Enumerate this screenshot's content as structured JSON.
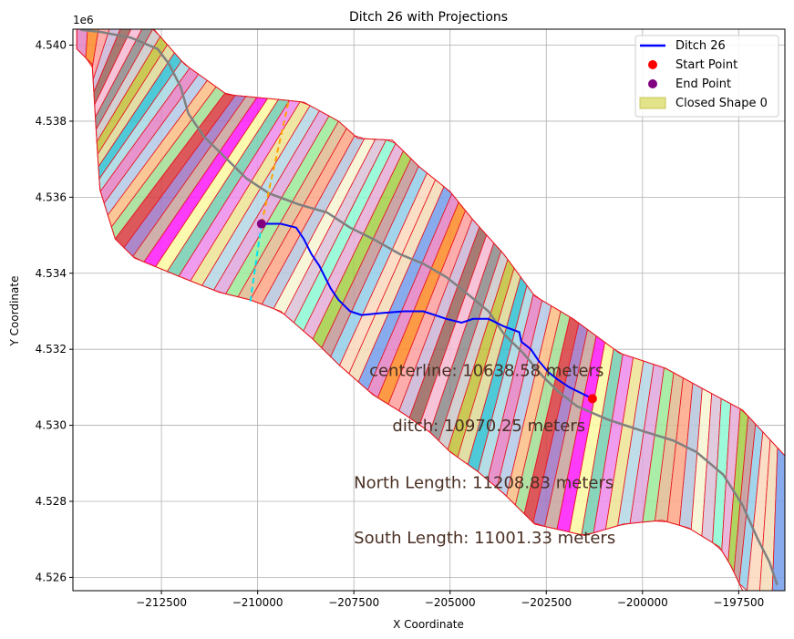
{
  "chart_data": {
    "type": "line",
    "title": "Ditch 26 with Projections",
    "xlabel": "X Coordinate",
    "ylabel": "Y Coordinate",
    "y_offset_label": "1e6",
    "xlim": [
      -214800,
      -196300
    ],
    "ylim": [
      4525650,
      4540420
    ],
    "grid": true,
    "legend_position": "top-right",
    "x_ticks": [
      {
        "value": -212500,
        "label": "−212500"
      },
      {
        "value": -210000,
        "label": "−210000"
      },
      {
        "value": -207500,
        "label": "−207500"
      },
      {
        "value": -205000,
        "label": "−205000"
      },
      {
        "value": -202500,
        "label": "−202500"
      },
      {
        "value": -200000,
        "label": "−200000"
      },
      {
        "value": -197500,
        "label": "−197500"
      }
    ],
    "y_ticks": [
      {
        "value": 4526000,
        "label": "4.526"
      },
      {
        "value": 4528000,
        "label": "4.528"
      },
      {
        "value": 4530000,
        "label": "4.530"
      },
      {
        "value": 4532000,
        "label": "4.532"
      },
      {
        "value": 4534000,
        "label": "4.534"
      },
      {
        "value": 4536000,
        "label": "4.536"
      },
      {
        "value": 4538000,
        "label": "4.538"
      },
      {
        "value": 4540000,
        "label": "4.540"
      }
    ],
    "legend": [
      {
        "label": "Ditch 26",
        "kind": "line",
        "color": "#0000ff"
      },
      {
        "label": "Start Point",
        "kind": "point",
        "color": "#ff0000"
      },
      {
        "label": "End Point",
        "kind": "point",
        "color": "#800080"
      },
      {
        "label": "Closed Shape 0",
        "kind": "patch",
        "color": "#e3e38a"
      }
    ],
    "closed_shape_0": {
      "edge_color": "#e8141e",
      "north_edge": [
        [
          -214700,
          4540420
        ],
        [
          -212700,
          4540420
        ],
        [
          -211900,
          4539500
        ],
        [
          -210800,
          4538700
        ],
        [
          -209250,
          4538550
        ],
        [
          -208800,
          4538500
        ],
        [
          -207900,
          4538000
        ],
        [
          -207400,
          4537550
        ],
        [
          -206500,
          4537500
        ],
        [
          -205800,
          4536800
        ],
        [
          -205000,
          4536150
        ],
        [
          -204400,
          4535400
        ],
        [
          -203600,
          4534500
        ],
        [
          -202800,
          4533400
        ],
        [
          -201800,
          4532800
        ],
        [
          -200600,
          4531900
        ],
        [
          -199400,
          4531500
        ],
        [
          -198500,
          4531000
        ],
        [
          -197400,
          4530400
        ],
        [
          -196300,
          4529200
        ]
      ],
      "south_edge": [
        [
          -196300,
          4525650
        ],
        [
          -197400,
          4525650
        ],
        [
          -197700,
          4526300
        ],
        [
          -198000,
          4526800
        ],
        [
          -198800,
          4527300
        ],
        [
          -199500,
          4527500
        ],
        [
          -200500,
          4527400
        ],
        [
          -201500,
          4527100
        ],
        [
          -202800,
          4527400
        ],
        [
          -203600,
          4528200
        ],
        [
          -204300,
          4528800
        ],
        [
          -205000,
          4529300
        ],
        [
          -205500,
          4529800
        ],
        [
          -206200,
          4530300
        ],
        [
          -207000,
          4530800
        ],
        [
          -207900,
          4531600
        ],
        [
          -208600,
          4532300
        ],
        [
          -209400,
          4533000
        ],
        [
          -210200,
          4533300
        ],
        [
          -211000,
          4533500
        ],
        [
          -212000,
          4533900
        ],
        [
          -213200,
          4534400
        ],
        [
          -213700,
          4534900
        ],
        [
          -214100,
          4536200
        ],
        [
          -214200,
          4537800
        ],
        [
          -214300,
          4539500
        ],
        [
          -214700,
          4539900
        ]
      ],
      "projection_fill_colors": [
        "#e377c2",
        "#ff7f0e",
        "#ff9896",
        "#c5b0d5",
        "#8c564b",
        "#f7b6d2",
        "#7f7f7f",
        "#c7c7c7",
        "#bcbd22",
        "#dbdb8d",
        "#17becf",
        "#9edae5",
        "#e377c2",
        "#aec7e8",
        "#ffbb78",
        "#98df8a",
        "#d62728",
        "#9467bd",
        "#c49c94",
        "#ff00ff",
        "#ffff99",
        "#66cdaa",
        "#ee82ee",
        "#f0e68c",
        "#add8e6",
        "#dda0dd",
        "#90ee90",
        "#deb887",
        "#ffa07a",
        "#b0c4de",
        "#fafad2",
        "#d8bfd8",
        "#7fffd4",
        "#e6a8d7",
        "#9acd32",
        "#bc8f8f",
        "#87ceeb",
        "#ffdab9",
        "#f5deb3",
        "#6495ed"
      ]
    },
    "centerline": {
      "color": "#808080",
      "points": [
        [
          -214600,
          4540400
        ],
        [
          -214100,
          4540350
        ],
        [
          -213300,
          4540200
        ],
        [
          -212600,
          4539900
        ],
        [
          -212300,
          4539500
        ],
        [
          -212000,
          4538900
        ],
        [
          -211800,
          4538200
        ],
        [
          -211400,
          4537600
        ],
        [
          -210800,
          4537000
        ],
        [
          -210300,
          4536500
        ],
        [
          -209700,
          4536100
        ],
        [
          -208900,
          4535800
        ],
        [
          -208200,
          4535600
        ],
        [
          -207600,
          4535200
        ],
        [
          -207000,
          4534900
        ],
        [
          -206300,
          4534500
        ],
        [
          -205700,
          4534250
        ],
        [
          -205100,
          4533900
        ],
        [
          -204600,
          4533500
        ],
        [
          -204000,
          4533000
        ],
        [
          -203600,
          4532400
        ],
        [
          -203100,
          4531900
        ],
        [
          -202600,
          4531300
        ],
        [
          -202200,
          4530900
        ],
        [
          -201700,
          4530500
        ],
        [
          -200900,
          4530150
        ],
        [
          -200000,
          4529850
        ],
        [
          -199200,
          4529600
        ],
        [
          -198600,
          4529300
        ],
        [
          -197900,
          4528700
        ],
        [
          -197400,
          4527900
        ],
        [
          -197000,
          4527000
        ],
        [
          -196700,
          4526400
        ],
        [
          -196500,
          4525800
        ]
      ]
    },
    "ditch_26": {
      "color": "#0000ff",
      "points": [
        [
          -209900,
          4535300
        ],
        [
          -209400,
          4535300
        ],
        [
          -209000,
          4535200
        ],
        [
          -208800,
          4534900
        ],
        [
          -208600,
          4534500
        ],
        [
          -208400,
          4534200
        ],
        [
          -208250,
          4533900
        ],
        [
          -208100,
          4533600
        ],
        [
          -207900,
          4533300
        ],
        [
          -207600,
          4533000
        ],
        [
          -207300,
          4532900
        ],
        [
          -206800,
          4532950
        ],
        [
          -206200,
          4533000
        ],
        [
          -205700,
          4533000
        ],
        [
          -205400,
          4532900
        ],
        [
          -205100,
          4532800
        ],
        [
          -204700,
          4532700
        ],
        [
          -204400,
          4532800
        ],
        [
          -204000,
          4532800
        ],
        [
          -203600,
          4532600
        ],
        [
          -203200,
          4532450
        ],
        [
          -203150,
          4532200
        ],
        [
          -202900,
          4532000
        ],
        [
          -202700,
          4531700
        ],
        [
          -202450,
          4531400
        ],
        [
          -202200,
          4531200
        ],
        [
          -201900,
          4531000
        ],
        [
          -201600,
          4530850
        ],
        [
          -201300,
          4530700
        ]
      ]
    },
    "start_point": {
      "x": -201300,
      "y": 4530700,
      "color": "#ff0000"
    },
    "end_point": {
      "x": -209900,
      "y": 4535300,
      "color": "#800080"
    },
    "north_projection": {
      "color": "#ffa500",
      "points": [
        [
          -209900,
          4535300
        ],
        [
          -209200,
          4538500
        ]
      ]
    },
    "south_projection": {
      "color": "#00e5ee",
      "points": [
        [
          -209900,
          4535300
        ],
        [
          -210200,
          4533200
        ]
      ]
    },
    "annotations": [
      {
        "text": "centerline: 10638.58 meters",
        "x": -207100,
        "y": 4531300
      },
      {
        "text": "ditch: 10970.25 meters",
        "x": -206500,
        "y": 4529850
      },
      {
        "text": "North Length: 11208.83 meters",
        "x": -207500,
        "y": 4528350
      },
      {
        "text": "South Length: 11001.33 meters",
        "x": -207500,
        "y": 4526900
      }
    ]
  }
}
